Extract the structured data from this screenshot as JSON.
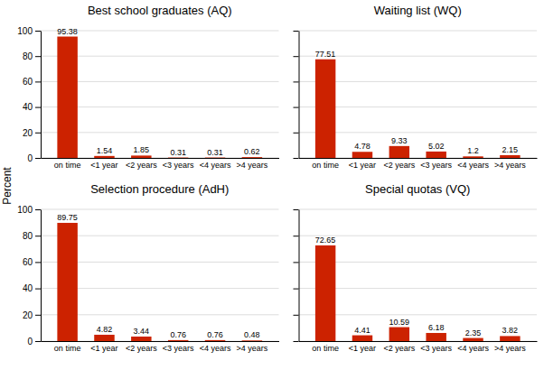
{
  "chart_data": [
    {
      "type": "bar",
      "title": "Best school graduates (AQ)",
      "ylabel": "Percent",
      "categories": [
        "on time",
        "<1 year",
        "<2 years",
        "<3 years",
        "<4 years",
        ">4 years"
      ],
      "values": [
        95.38,
        1.54,
        1.85,
        0.31,
        0.31,
        0.62
      ],
      "color": "#cc2200",
      "ylim": [
        0,
        100
      ],
      "yticks": [
        0,
        20,
        40,
        60,
        80,
        100
      ],
      "grid": true,
      "data_labels": true
    },
    {
      "type": "bar",
      "title": "Waiting list (WQ)",
      "categories": [
        "on time",
        "<1 year",
        "<2 years",
        "<3 years",
        "<4 years",
        ">4 years"
      ],
      "values": [
        77.51,
        4.78,
        9.33,
        5.02,
        1.2,
        2.15
      ],
      "color": "#cc2200",
      "ylim": [
        0,
        100
      ],
      "yticks": [
        0,
        20,
        40,
        60,
        80,
        100
      ],
      "grid": true,
      "data_labels": true,
      "tick_labels": "x"
    },
    {
      "type": "bar",
      "title": "Selection procedure (AdH)",
      "categories": [
        "on time",
        "<1 year",
        "<2 years",
        "<3 years",
        "<4 years",
        ">4 years"
      ],
      "values": [
        89.75,
        4.82,
        3.44,
        0.76,
        0.76,
        0.48
      ],
      "color": "#cc2200",
      "ylim": [
        0,
        100
      ],
      "yticks": [
        0,
        20,
        40,
        60,
        80,
        100
      ],
      "grid": true,
      "data_labels": true
    },
    {
      "type": "bar",
      "title": "Special quotas (VQ)",
      "categories": [
        "on time",
        "<1 year",
        "<2 years",
        "<3 years",
        "<4 years",
        ">4 years"
      ],
      "values": [
        72.65,
        4.41,
        10.59,
        6.18,
        2.35,
        3.82
      ],
      "color": "#cc2200",
      "ylim": [
        0,
        100
      ],
      "yticks": [
        0,
        20,
        40,
        60,
        80,
        100
      ],
      "grid": true,
      "data_labels": true,
      "tick_labels": "x"
    }
  ]
}
